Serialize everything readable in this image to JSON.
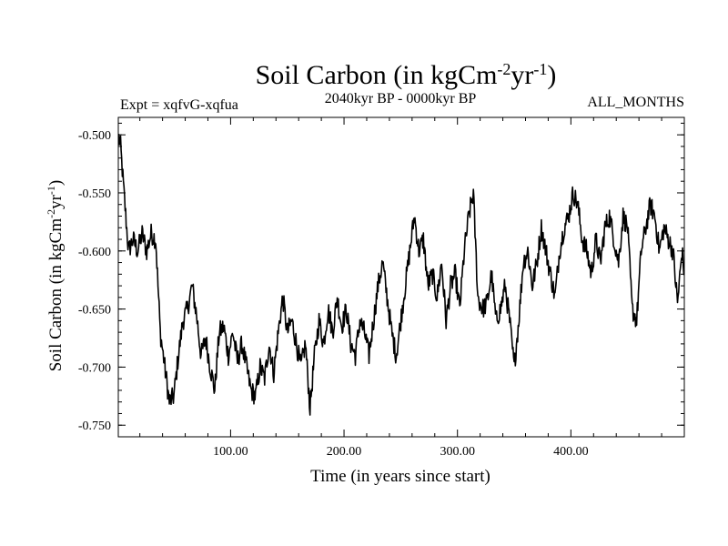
{
  "chart_data": {
    "type": "line",
    "title": {
      "main": "Soil Carbon (in kgCm",
      "sup1": "-2",
      "mid": "yr",
      "sup2": "-1",
      "end": ")"
    },
    "subtitle_left": "Expt = xqfvG-xqfua",
    "subtitle_center": "2040kyr BP - 0000kyr BP",
    "subtitle_right": "ALL_MONTHS",
    "xlabel": "Time (in years since start)",
    "ylabel": {
      "main": "Soil Carbon (in kgCm",
      "sup1": "-2",
      "mid": "yr",
      "sup2": "-1",
      "end": ")"
    },
    "xlim": [
      1,
      500
    ],
    "ylim": [
      -0.76,
      -0.485
    ],
    "x_ticks": [
      100,
      200,
      300,
      400
    ],
    "x_tick_labels": [
      "100.00",
      "200.00",
      "300.00",
      "400.00"
    ],
    "y_ticks": [
      -0.5,
      -0.55,
      -0.6,
      -0.65,
      -0.7,
      -0.75
    ],
    "y_tick_labels": [
      "-0.500",
      "-0.550",
      "-0.600",
      "-0.650",
      "-0.700",
      "-0.750"
    ],
    "series": [
      {
        "name": "Soil Carbon",
        "color": "#000000",
        "x": [
          1,
          3,
          6,
          10,
          14,
          18,
          22,
          26,
          30,
          34,
          38,
          42,
          46,
          50,
          54,
          58,
          62,
          66,
          70,
          74,
          78,
          82,
          86,
          90,
          94,
          98,
          102,
          106,
          110,
          114,
          118,
          122,
          126,
          130,
          134,
          138,
          142,
          146,
          150,
          154,
          158,
          162,
          166,
          170,
          174,
          178,
          182,
          186,
          190,
          194,
          198,
          202,
          206,
          210,
          214,
          218,
          222,
          226,
          230,
          234,
          238,
          242,
          246,
          250,
          254,
          258,
          262,
          266,
          270,
          274,
          278,
          282,
          286,
          290,
          294,
          298,
          302,
          306,
          310,
          314,
          318,
          322,
          326,
          330,
          334,
          338,
          342,
          346,
          350,
          354,
          358,
          362,
          366,
          370,
          374,
          378,
          382,
          386,
          390,
          394,
          398,
          402,
          406,
          410,
          414,
          418,
          422,
          426,
          430,
          434,
          438,
          442,
          446,
          450,
          454,
          458,
          462,
          466,
          470,
          474,
          478,
          482,
          486,
          490,
          494,
          498,
          500
        ],
        "values": [
          -0.5,
          -0.51,
          -0.55,
          -0.6,
          -0.59,
          -0.6,
          -0.585,
          -0.6,
          -0.585,
          -0.59,
          -0.67,
          -0.7,
          -0.73,
          -0.725,
          -0.69,
          -0.66,
          -0.65,
          -0.63,
          -0.655,
          -0.69,
          -0.675,
          -0.7,
          -0.72,
          -0.67,
          -0.665,
          -0.69,
          -0.67,
          -0.695,
          -0.68,
          -0.7,
          -0.72,
          -0.725,
          -0.7,
          -0.71,
          -0.68,
          -0.705,
          -0.67,
          -0.64,
          -0.67,
          -0.66,
          -0.68,
          -0.7,
          -0.68,
          -0.735,
          -0.69,
          -0.66,
          -0.68,
          -0.65,
          -0.67,
          -0.64,
          -0.665,
          -0.65,
          -0.68,
          -0.69,
          -0.66,
          -0.67,
          -0.69,
          -0.66,
          -0.63,
          -0.61,
          -0.64,
          -0.67,
          -0.69,
          -0.66,
          -0.63,
          -0.6,
          -0.57,
          -0.6,
          -0.59,
          -0.63,
          -0.62,
          -0.64,
          -0.61,
          -0.66,
          -0.63,
          -0.62,
          -0.65,
          -0.6,
          -0.57,
          -0.55,
          -0.64,
          -0.65,
          -0.645,
          -0.62,
          -0.66,
          -0.65,
          -0.63,
          -0.66,
          -0.7,
          -0.66,
          -0.61,
          -0.6,
          -0.63,
          -0.61,
          -0.58,
          -0.6,
          -0.62,
          -0.64,
          -0.6,
          -0.58,
          -0.57,
          -0.55,
          -0.56,
          -0.59,
          -0.6,
          -0.62,
          -0.59,
          -0.61,
          -0.58,
          -0.57,
          -0.59,
          -0.61,
          -0.57,
          -0.58,
          -0.65,
          -0.66,
          -0.6,
          -0.58,
          -0.56,
          -0.57,
          -0.6,
          -0.58,
          -0.59,
          -0.6,
          -0.645,
          -0.6,
          -0.62
        ]
      }
    ]
  }
}
